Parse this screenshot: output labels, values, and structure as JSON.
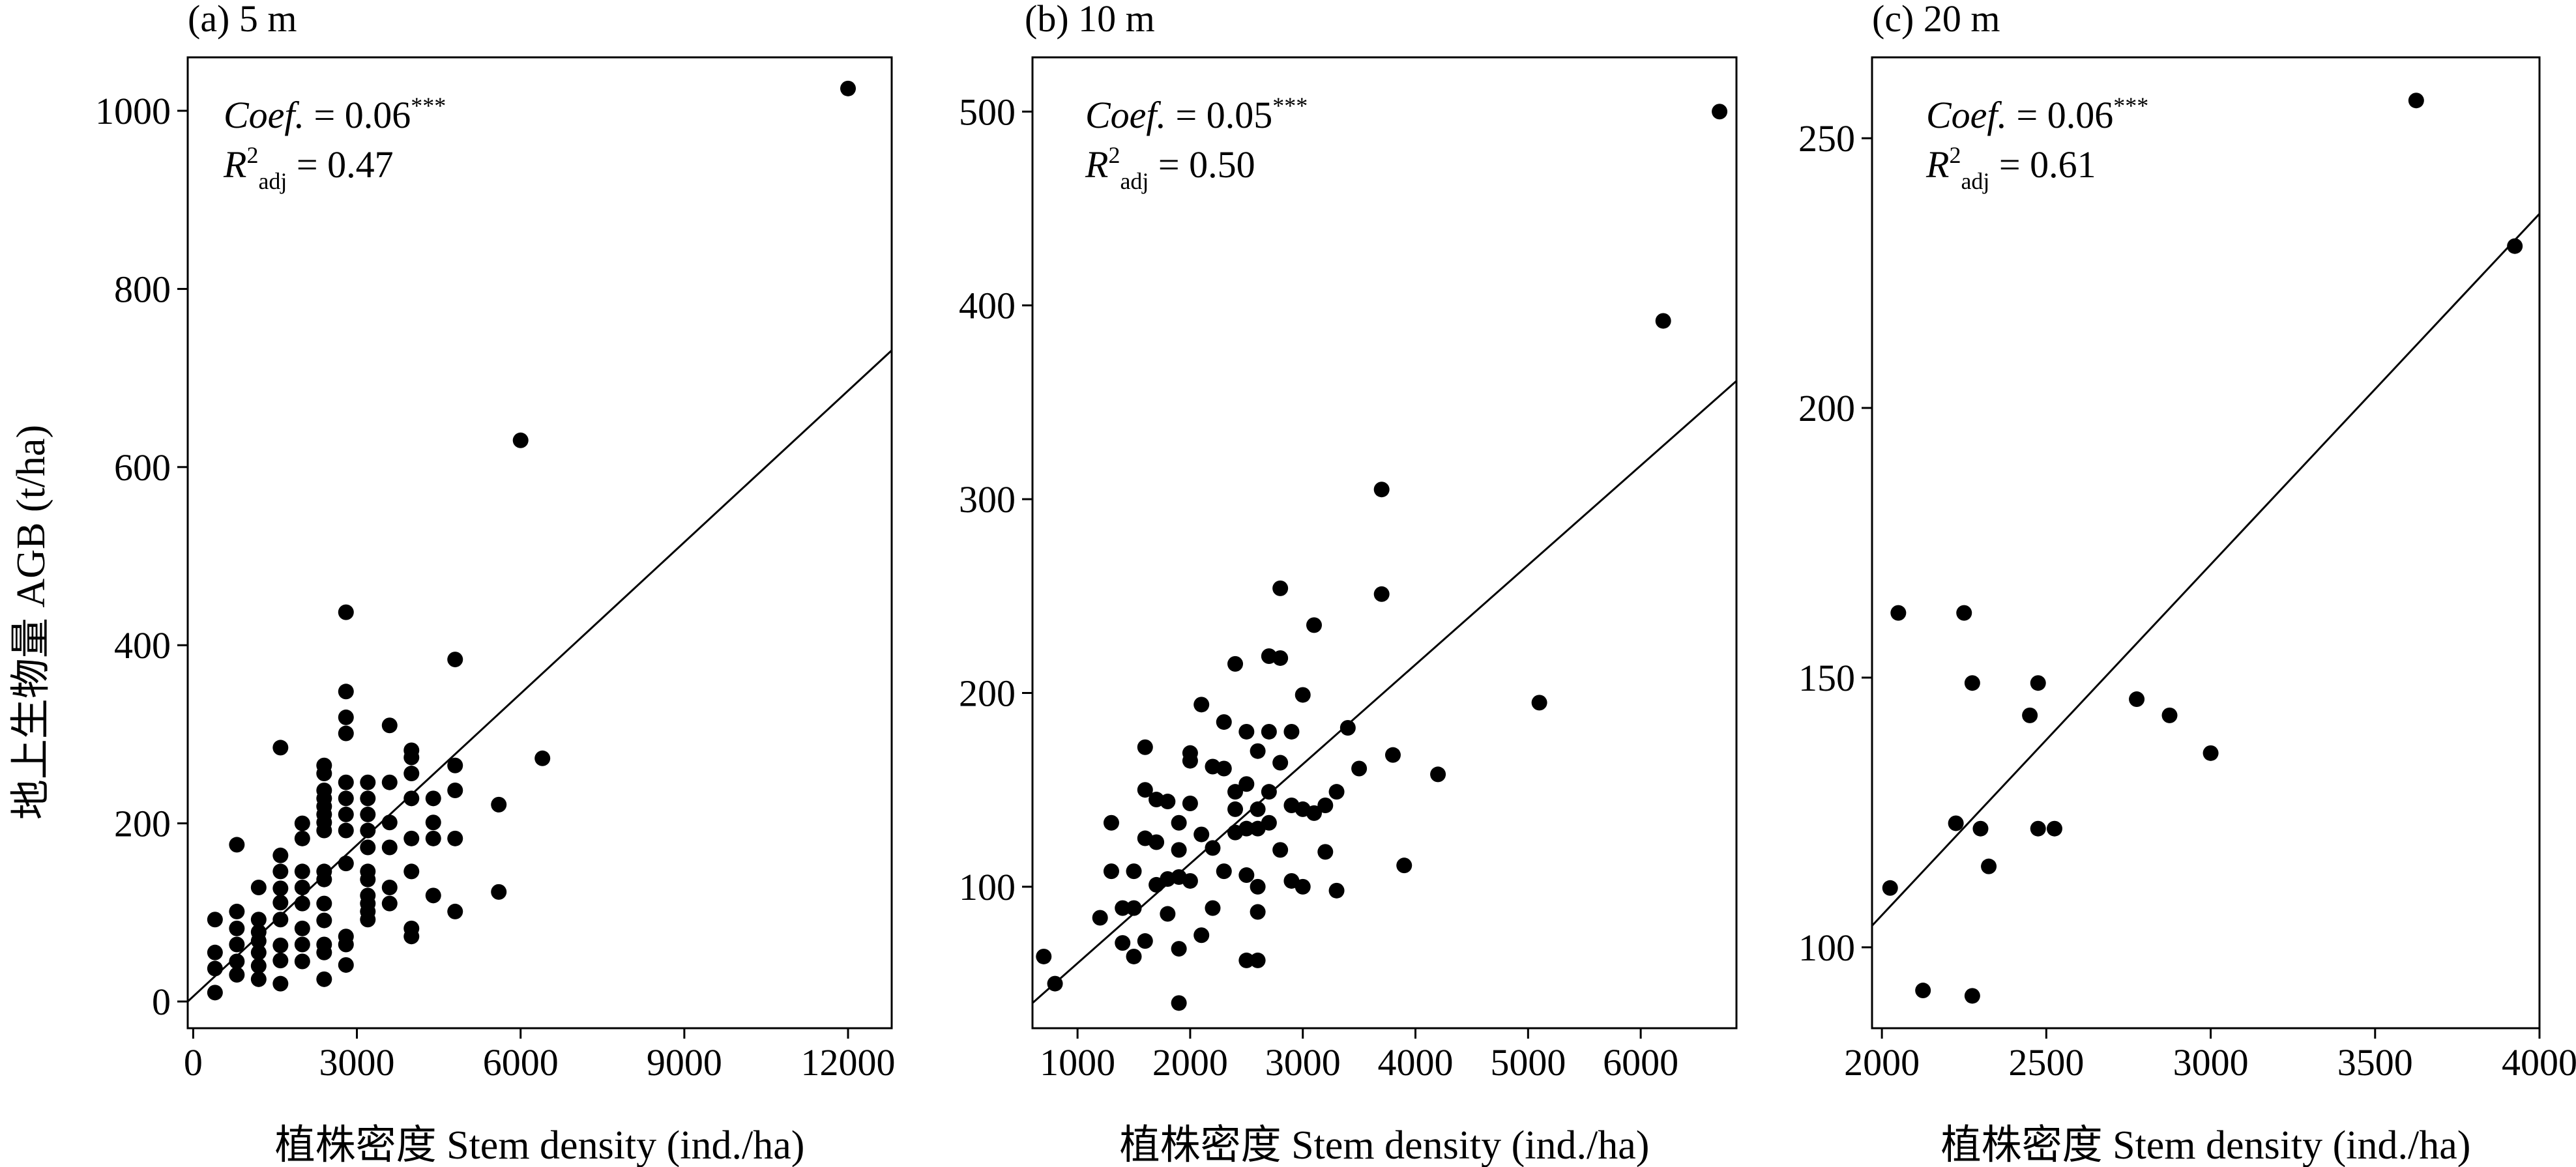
{
  "figure": {
    "shared_ylabel": "地上生物量 AGB (t/ha)"
  },
  "chart_data": [
    {
      "type": "scatter",
      "title": "(a) 5 m",
      "xlabel": "植株密度 Stem density (ind./ha)",
      "ylabel": "地上生物量 AGB (t/ha)",
      "xlim": [
        -100,
        12800
      ],
      "ylim": [
        -30,
        1060
      ],
      "xticks": [
        0,
        3000,
        6000,
        9000,
        12000
      ],
      "xtick_labels": [
        "0",
        "3000",
        "6000",
        "9000",
        "12000"
      ],
      "yticks": [
        0,
        200,
        400,
        600,
        800,
        1000
      ],
      "ytick_labels": [
        "0",
        "200",
        "400",
        "600",
        "800",
        "1000"
      ],
      "annotation": {
        "coef_label": "Coef.",
        "coef_value": " = 0.06",
        "coef_sig": "***",
        "r2_label": "R",
        "r2_sup": "2",
        "r2_sub": "adj",
        "r2_value": " = 0.47"
      },
      "fit_line": {
        "x": [
          -100,
          12800
        ],
        "y": [
          0,
          731
        ]
      },
      "x": [
        400,
        400,
        400,
        400,
        800,
        800,
        800,
        800,
        800,
        800,
        1200,
        1200,
        1200,
        1200,
        1200,
        1200,
        1200,
        1600,
        1600,
        1600,
        1600,
        1600,
        1600,
        1600,
        1600,
        1600,
        2000,
        2000,
        2000,
        2000,
        2000,
        2000,
        2000,
        2000,
        2400,
        2400,
        2400,
        2400,
        2400,
        2400,
        2400,
        2400,
        2400,
        2400,
        2400,
        2400,
        2400,
        2400,
        2400,
        2800,
        2800,
        2800,
        2800,
        2800,
        2800,
        2800,
        2800,
        2800,
        2800,
        2800,
        2800,
        3200,
        3200,
        3200,
        3200,
        3200,
        3200,
        3200,
        3200,
        3200,
        3200,
        3200,
        3600,
        3600,
        3600,
        3600,
        3600,
        3600,
        4000,
        4000,
        4000,
        4000,
        4000,
        4000,
        4000,
        4000,
        4400,
        4400,
        4400,
        4400,
        4800,
        4800,
        4800,
        4800,
        4800,
        5600,
        5600,
        6000,
        6400,
        12000
      ],
      "y": [
        10,
        37,
        55,
        92,
        30,
        45,
        64,
        82,
        101,
        176,
        25,
        40,
        55,
        68,
        78,
        92,
        128,
        20,
        46,
        63,
        92,
        111,
        127,
        146,
        164,
        285,
        45,
        64,
        82,
        110,
        128,
        146,
        183,
        200,
        25,
        55,
        64,
        91,
        110,
        137,
        146,
        192,
        210,
        228,
        237,
        256,
        265,
        219,
        201,
        41,
        64,
        73,
        155,
        192,
        210,
        228,
        246,
        301,
        319,
        348,
        437,
        92,
        101,
        110,
        119,
        137,
        146,
        173,
        192,
        210,
        228,
        246,
        110,
        128,
        173,
        201,
        246,
        310,
        73,
        82,
        146,
        183,
        256,
        274,
        282,
        228,
        119,
        183,
        228,
        201,
        101,
        183,
        237,
        265,
        384,
        123,
        221,
        630,
        273,
        1025
      ]
    },
    {
      "type": "scatter",
      "title": "(b) 10 m",
      "xlabel": "植株密度 Stem density (ind./ha)",
      "ylabel": "",
      "xlim": [
        600,
        6850
      ],
      "ylim": [
        27,
        528
      ],
      "xticks": [
        1000,
        2000,
        3000,
        4000,
        5000,
        6000
      ],
      "xtick_labels": [
        "1000",
        "2000",
        "3000",
        "4000",
        "5000",
        "6000"
      ],
      "yticks": [
        100,
        200,
        300,
        400,
        500
      ],
      "ytick_labels": [
        "100",
        "200",
        "300",
        "400",
        "500"
      ],
      "annotation": {
        "coef_label": "Coef.",
        "coef_value": " = 0.05",
        "coef_sig": "***",
        "r2_label": "R",
        "r2_sup": "2",
        "r2_sub": "adj",
        "r2_value": " = 0.50"
      },
      "fit_line": {
        "x": [
          600,
          6850
        ],
        "y": [
          40,
          361
        ]
      },
      "x": [
        700,
        800,
        1200,
        1300,
        1300,
        1400,
        1400,
        1500,
        1500,
        1500,
        1600,
        1600,
        1600,
        1600,
        1700,
        1700,
        1700,
        1800,
        1800,
        1800,
        1900,
        1900,
        1900,
        1900,
        1900,
        2000,
        2000,
        2000,
        2000,
        2100,
        2100,
        2100,
        2200,
        2200,
        2200,
        2300,
        2300,
        2300,
        2400,
        2400,
        2400,
        2400,
        2500,
        2500,
        2500,
        2500,
        2500,
        2600,
        2600,
        2600,
        2600,
        2600,
        2600,
        2700,
        2700,
        2700,
        2700,
        2800,
        2800,
        2800,
        2800,
        2900,
        2900,
        2900,
        3000,
        3000,
        3000,
        3100,
        3100,
        3200,
        3200,
        3300,
        3300,
        3400,
        3500,
        3700,
        3700,
        3800,
        3900,
        4200,
        5100,
        6200,
        6700
      ],
      "y": [
        64,
        50,
        84,
        108,
        133,
        71,
        89,
        64,
        89,
        108,
        72,
        125,
        150,
        172,
        101,
        123,
        145,
        86,
        104,
        144,
        40,
        68,
        105,
        119,
        133,
        103,
        143,
        165,
        169,
        75,
        127,
        194,
        89,
        120,
        162,
        108,
        161,
        185,
        128,
        140,
        149,
        215,
        62,
        106,
        130,
        153,
        180,
        62,
        87,
        100,
        130,
        140,
        170,
        149,
        180,
        219,
        133,
        119,
        164,
        218,
        254,
        103,
        142,
        180,
        100,
        140,
        199,
        138,
        235,
        118,
        142,
        98,
        149,
        182,
        161,
        251,
        305,
        168,
        111,
        158,
        195,
        392,
        500
      ]
    },
    {
      "type": "scatter",
      "title": "(c) 20 m",
      "xlabel": "植株密度 Stem density (ind./ha)",
      "ylabel": "",
      "xlim": [
        1970,
        4000
      ],
      "ylim": [
        85,
        265
      ],
      "xticks": [
        2000,
        2500,
        3000,
        3500,
        4000
      ],
      "xtick_labels": [
        "2000",
        "2500",
        "3000",
        "3500",
        "4000"
      ],
      "yticks": [
        100,
        150,
        200,
        250
      ],
      "ytick_labels": [
        "100",
        "150",
        "200",
        "250"
      ],
      "annotation": {
        "coef_label": "Coef.",
        "coef_value": " = 0.06",
        "coef_sig": "***",
        "r2_label": "R",
        "r2_sup": "2",
        "r2_sub": "adj",
        "r2_value": " = 0.61"
      },
      "fit_line": {
        "x": [
          1970,
          4000
        ],
        "y": [
          104,
          236
        ]
      },
      "x": [
        2025,
        2050,
        2125,
        2225,
        2250,
        2275,
        2275,
        2300,
        2325,
        2450,
        2475,
        2475,
        2525,
        2775,
        2875,
        3000,
        3625,
        3925
      ],
      "y": [
        111,
        162,
        92,
        123,
        162,
        149,
        91,
        122,
        115,
        143,
        122,
        149,
        122,
        146,
        143,
        136,
        257,
        230
      ]
    }
  ]
}
